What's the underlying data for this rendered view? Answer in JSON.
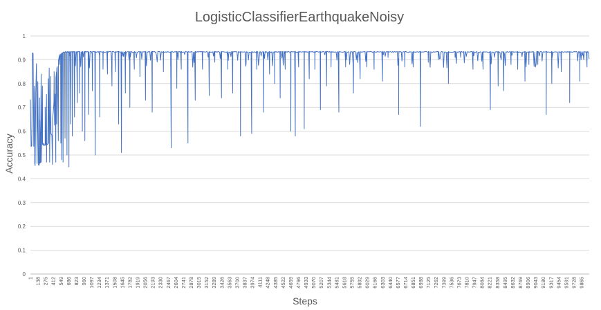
{
  "chart_data": {
    "type": "line",
    "title": "LogisticClassifierEarthquakeNoisy",
    "xlabel": "Steps",
    "ylabel": "Accuracy",
    "ylim": [
      0,
      1
    ],
    "yticks": [
      "0",
      "0.1",
      "0.2",
      "0.3",
      "0.4",
      "0.5",
      "0.6",
      "0.7",
      "0.8",
      "0.9",
      "1"
    ],
    "xlim": [
      1,
      10000
    ],
    "xticks": [
      "1",
      "138",
      "275",
      "412",
      "549",
      "686",
      "823",
      "960",
      "1097",
      "1234",
      "1371",
      "1508",
      "1645",
      "1782",
      "1919",
      "2056",
      "2193",
      "2330",
      "2467",
      "2604",
      "2741",
      "2878",
      "3015",
      "3152",
      "3289",
      "3426",
      "3563",
      "3700",
      "3837",
      "3974",
      "4111",
      "4248",
      "4385",
      "4522",
      "4659",
      "4796",
      "4933",
      "5070",
      "5207",
      "5344",
      "5481",
      "5618",
      "5755",
      "5892",
      "6029",
      "6166",
      "6303",
      "6440",
      "6577",
      "6714",
      "6851",
      "6988",
      "7125",
      "7262",
      "7399",
      "7536",
      "7673",
      "7810",
      "7947",
      "8084",
      "8221",
      "8358",
      "8495",
      "8632",
      "8769",
      "8906",
      "9043",
      "9180",
      "9317",
      "9454",
      "9591",
      "9728",
      "9865"
    ],
    "grid": true,
    "legend": "none",
    "series_color": "#4472C4",
    "baseline": [
      [
        1,
        0.545
      ],
      [
        60,
        0.545
      ],
      [
        70,
        0.465
      ],
      [
        180,
        0.465
      ],
      [
        200,
        0.545
      ],
      [
        330,
        0.55
      ],
      [
        380,
        0.6
      ],
      [
        420,
        0.72
      ],
      [
        470,
        0.86
      ],
      [
        520,
        0.92
      ],
      [
        600,
        0.935
      ],
      [
        10000,
        0.935
      ]
    ],
    "dips": [
      [
        75,
        0.77
      ],
      [
        150,
        0.46
      ],
      [
        165,
        0.74
      ],
      [
        200,
        0.47
      ],
      [
        215,
        0.79
      ],
      [
        240,
        0.55
      ],
      [
        265,
        0.7
      ],
      [
        290,
        0.47
      ],
      [
        320,
        0.82
      ],
      [
        345,
        0.47
      ],
      [
        365,
        0.83
      ],
      [
        395,
        0.46
      ],
      [
        425,
        0.85
      ],
      [
        455,
        0.47
      ],
      [
        470,
        0.63
      ],
      [
        500,
        0.56
      ],
      [
        525,
        0.88
      ],
      [
        545,
        0.55
      ],
      [
        560,
        0.48
      ],
      [
        585,
        0.47
      ],
      [
        620,
        0.57
      ],
      [
        655,
        0.5
      ],
      [
        690,
        0.45
      ],
      [
        720,
        0.63
      ],
      [
        750,
        0.58
      ],
      [
        790,
        0.66
      ],
      [
        840,
        0.72
      ],
      [
        880,
        0.76
      ],
      [
        930,
        0.6
      ],
      [
        975,
        0.56
      ],
      [
        1040,
        0.67
      ],
      [
        1110,
        0.77
      ],
      [
        1160,
        0.5
      ],
      [
        1240,
        0.66
      ],
      [
        1300,
        0.86
      ],
      [
        1380,
        0.84
      ],
      [
        1460,
        0.79
      ],
      [
        1520,
        0.85
      ],
      [
        1580,
        0.63
      ],
      [
        1630,
        0.51
      ],
      [
        1700,
        0.76
      ],
      [
        1780,
        0.7
      ],
      [
        1860,
        0.86
      ],
      [
        1960,
        0.83
      ],
      [
        2060,
        0.73
      ],
      [
        2180,
        0.68
      ],
      [
        2380,
        0.85
      ],
      [
        2520,
        0.53
      ],
      [
        2620,
        0.78
      ],
      [
        2700,
        0.86
      ],
      [
        2820,
        0.55
      ],
      [
        2950,
        0.73
      ],
      [
        3080,
        0.86
      ],
      [
        3200,
        0.75
      ],
      [
        3300,
        0.89
      ],
      [
        3420,
        0.74
      ],
      [
        3530,
        0.86
      ],
      [
        3620,
        0.76
      ],
      [
        3760,
        0.58
      ],
      [
        3860,
        0.88
      ],
      [
        3960,
        0.59
      ],
      [
        4050,
        0.86
      ],
      [
        4170,
        0.68
      ],
      [
        4280,
        0.84
      ],
      [
        4370,
        0.8
      ],
      [
        4470,
        0.74
      ],
      [
        4560,
        0.86
      ],
      [
        4660,
        0.6
      ],
      [
        4740,
        0.58
      ],
      [
        4800,
        0.87
      ],
      [
        4900,
        0.61
      ],
      [
        4990,
        0.82
      ],
      [
        5090,
        0.86
      ],
      [
        5190,
        0.69
      ],
      [
        5300,
        0.79
      ],
      [
        5380,
        0.87
      ],
      [
        5520,
        0.68
      ],
      [
        5640,
        0.89
      ],
      [
        5780,
        0.76
      ],
      [
        5900,
        0.82
      ],
      [
        6020,
        0.87
      ],
      [
        6150,
        0.86
      ],
      [
        6300,
        0.81
      ],
      [
        6400,
        0.91
      ],
      [
        6590,
        0.67
      ],
      [
        6700,
        0.87
      ],
      [
        6850,
        0.87
      ],
      [
        6980,
        0.62
      ],
      [
        7120,
        0.89
      ],
      [
        7300,
        0.9
      ],
      [
        7480,
        0.8
      ],
      [
        7600,
        0.91
      ],
      [
        7700,
        0.91
      ],
      [
        7920,
        0.86
      ],
      [
        8100,
        0.86
      ],
      [
        8230,
        0.69
      ],
      [
        8370,
        0.79
      ],
      [
        8470,
        0.77
      ],
      [
        8600,
        0.88
      ],
      [
        8720,
        0.86
      ],
      [
        8850,
        0.81
      ],
      [
        8920,
        0.88
      ],
      [
        9080,
        0.88
      ],
      [
        9230,
        0.67
      ],
      [
        9330,
        0.8
      ],
      [
        9500,
        0.85
      ],
      [
        9650,
        0.72
      ],
      [
        9830,
        0.81
      ],
      [
        9960,
        0.87
      ]
    ]
  }
}
